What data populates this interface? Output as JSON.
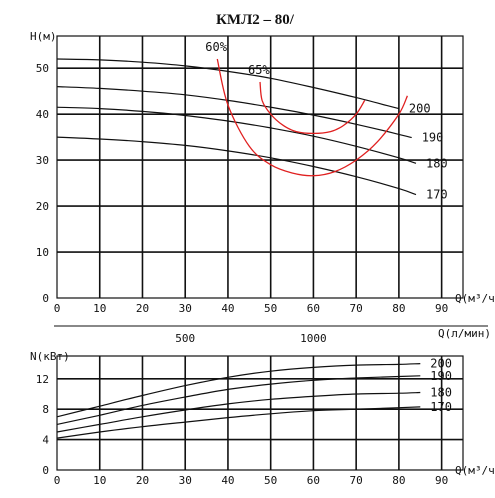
{
  "title": "КМЛ2 – 80/",
  "chart_data": [
    {
      "type": "line",
      "name": "head",
      "ylabel": "H(м)",
      "xlabel": "Q(м³/ч)",
      "xlim": [
        0,
        95
      ],
      "ylim": [
        0,
        57
      ],
      "xticks": [
        0,
        10,
        20,
        30,
        40,
        50,
        60,
        70,
        80,
        90
      ],
      "yticks": [
        0,
        10,
        20,
        30,
        40,
        50
      ],
      "secondary_xlabel": "Q(л/мин)",
      "secondary_xticks": [
        500,
        1000
      ],
      "grid": true,
      "series": [
        {
          "name": "200",
          "color": "#111111",
          "x": [
            0,
            10,
            20,
            30,
            40,
            50,
            60,
            70,
            80
          ],
          "y": [
            52,
            51.8,
            51.3,
            50.5,
            49.3,
            47.8,
            45.8,
            43.6,
            41.2
          ]
        },
        {
          "name": "190",
          "color": "#111111",
          "x": [
            0,
            10,
            20,
            30,
            40,
            50,
            60,
            70,
            80,
            83
          ],
          "y": [
            46,
            45.6,
            45,
            44.2,
            43,
            41.5,
            39.8,
            37.8,
            35.6,
            34.9
          ]
        },
        {
          "name": "180",
          "color": "#111111",
          "x": [
            0,
            10,
            20,
            30,
            40,
            50,
            60,
            70,
            80,
            84
          ],
          "y": [
            41.5,
            41.2,
            40.6,
            39.7,
            38.5,
            37,
            35.2,
            33,
            30.5,
            29.3
          ]
        },
        {
          "name": "170",
          "color": "#111111",
          "x": [
            0,
            10,
            20,
            30,
            40,
            50,
            60,
            70,
            80,
            84
          ],
          "y": [
            35,
            34.6,
            34,
            33.2,
            32,
            30.5,
            28.6,
            26.4,
            23.8,
            22.5
          ]
        }
      ],
      "efficiency": [
        {
          "name": "60%",
          "color": "#e02020",
          "x": [
            37.5,
            40,
            45,
            50,
            55,
            60,
            65,
            70,
            75,
            80,
            82
          ],
          "y": [
            52,
            42,
            33,
            29,
            27.2,
            26.6,
            27.5,
            30,
            34,
            40,
            44
          ]
        },
        {
          "name": "65%",
          "color": "#e02020",
          "x": [
            47.5,
            48,
            50,
            53,
            56,
            60,
            64,
            67,
            70,
            72
          ],
          "y": [
            47,
            43,
            40,
            37.5,
            36.2,
            35.8,
            36.2,
            37.5,
            40,
            43
          ]
        }
      ]
    },
    {
      "type": "line",
      "name": "power",
      "ylabel": "N(кВт)",
      "xlabel": "Q(м³/ч)",
      "xlim": [
        0,
        95
      ],
      "ylim": [
        0,
        15
      ],
      "xticks": [
        0,
        10,
        20,
        30,
        40,
        50,
        60,
        70,
        80,
        90
      ],
      "yticks": [
        0,
        4,
        8,
        12
      ],
      "grid": true,
      "series": [
        {
          "name": "200",
          "color": "#111111",
          "x": [
            0,
            10,
            20,
            30,
            40,
            50,
            60,
            70,
            80,
            85
          ],
          "y": [
            7,
            8.4,
            9.8,
            11.1,
            12.2,
            13,
            13.5,
            13.8,
            13.9,
            14
          ]
        },
        {
          "name": "190",
          "color": "#111111",
          "x": [
            0,
            10,
            20,
            30,
            40,
            50,
            60,
            70,
            80,
            85
          ],
          "y": [
            6,
            7.2,
            8.5,
            9.6,
            10.6,
            11.3,
            11.8,
            12.1,
            12.3,
            12.4
          ]
        },
        {
          "name": "180",
          "color": "#111111",
          "x": [
            0,
            10,
            20,
            30,
            40,
            50,
            60,
            70,
            80,
            85
          ],
          "y": [
            5,
            6,
            7,
            7.9,
            8.7,
            9.3,
            9.7,
            10,
            10.1,
            10.2
          ]
        },
        {
          "name": "170",
          "color": "#111111",
          "x": [
            0,
            10,
            20,
            30,
            40,
            50,
            60,
            70,
            80,
            85
          ],
          "y": [
            4.2,
            5,
            5.7,
            6.3,
            6.9,
            7.4,
            7.8,
            8,
            8.2,
            8.3
          ]
        }
      ]
    }
  ]
}
